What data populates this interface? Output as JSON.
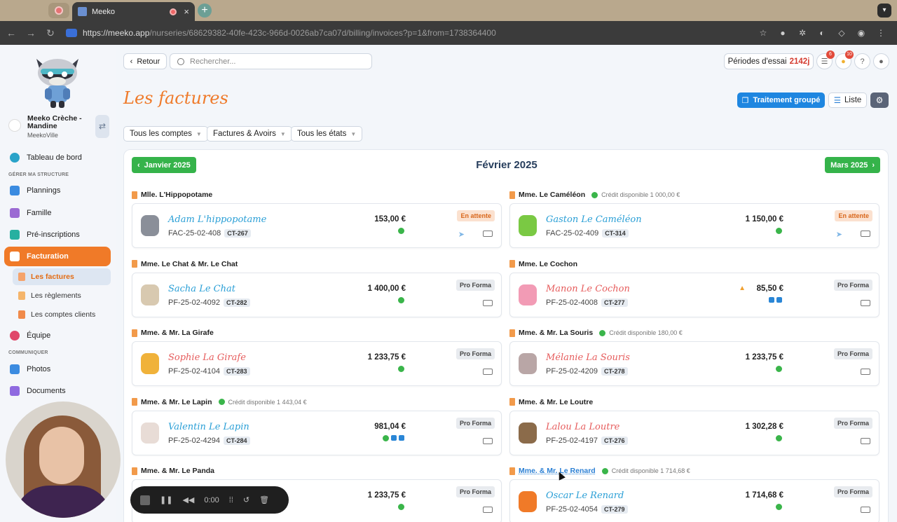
{
  "browser": {
    "tab_title": "Meeko",
    "url_host": "https://meeko.app",
    "url_path": "/nurseries/68629382-40fe-423c-966d-0026ab7ca07d/billing/invoices?p=1&from=1738364400"
  },
  "sidebar": {
    "org_name": "Meeko Crèche - Mandine",
    "org_city": "MeekoVille",
    "dashboard": "Tableau de bord",
    "section_manage": "GÉRER MA STRUCTURE",
    "plannings": "Plannings",
    "famille": "Famille",
    "preinscriptions": "Pré-inscriptions",
    "facturation": "Facturation",
    "sub_factures": "Les factures",
    "sub_reglements": "Les règlements",
    "sub_comptes": "Les comptes clients",
    "equipe": "Équipe",
    "section_comm": "COMMUNIQUER",
    "photos": "Photos",
    "documents": "Documents"
  },
  "header": {
    "back": "Retour",
    "search_placeholder": "Rechercher...",
    "trial_label": "Périodes d'essai",
    "trial_days": "2142j",
    "badge_list": "6",
    "badge_bell": "10",
    "help": "?"
  },
  "page": {
    "title": "Les factures",
    "btn_group": "Traitement groupé",
    "btn_list": "Liste"
  },
  "filters": {
    "accounts": "Tous les comptes",
    "type": "Factures & Avoirs",
    "states": "Tous les états"
  },
  "month": {
    "prev": "Janvier 2025",
    "current": "Février 2025",
    "next": "Mars 2025"
  },
  "families": [
    {
      "family": "Mlle. L'Hippopotame",
      "credit": "",
      "child": "Adam L'hippopotame",
      "ref": "FAC-25-02-408",
      "ct": "CT-267",
      "amount": "153,00 €",
      "status": "En attente",
      "color": "#2a9fd6"
    },
    {
      "family": "Mme. Le Caméléon",
      "credit": "Crédit disponible 1 000,00 €",
      "child": "Gaston Le Caméléon",
      "ref": "FAC-25-02-409",
      "ct": "CT-314",
      "amount": "1 150,00 €",
      "status": "En attente",
      "color": "#2a9fd6"
    },
    {
      "family": "Mme. Le Chat & Mr. Le Chat",
      "credit": "",
      "child": "Sacha Le Chat",
      "ref": "PF-25-02-4092",
      "ct": "CT-282",
      "amount": "1 400,00 €",
      "status": "Pro Forma",
      "color": "#2a9fd6"
    },
    {
      "family": "Mme. Le Cochon",
      "credit": "",
      "child": "Manon Le Cochon",
      "ref": "PF-25-02-4008",
      "ct": "CT-277",
      "amount": "85,50 €",
      "status": "Pro Forma",
      "color": "#e65c5c"
    },
    {
      "family": "Mme. & Mr. La Girafe",
      "credit": "",
      "child": "Sophie La Girafe",
      "ref": "PF-25-02-4104",
      "ct": "CT-283",
      "amount": "1 233,75 €",
      "status": "Pro Forma",
      "color": "#e65c5c"
    },
    {
      "family": "Mme. & Mr. La Souris",
      "credit": "Crédit disponible 180,00 €",
      "child": "Mélanie La Souris",
      "ref": "PF-25-02-4209",
      "ct": "CT-278",
      "amount": "1 233,75 €",
      "status": "Pro Forma",
      "color": "#e65c5c"
    },
    {
      "family": "Mme. & Mr. Le Lapin",
      "credit": "Crédit disponible 1 443,04 €",
      "child": "Valentin Le Lapin",
      "ref": "PF-25-02-4294",
      "ct": "CT-284",
      "amount": "981,04 €",
      "status": "Pro Forma",
      "color": "#2a9fd6"
    },
    {
      "family": "Mme. & Mr. Le Loutre",
      "credit": "",
      "child": "Lalou La Loutre",
      "ref": "PF-25-02-4197",
      "ct": "CT-276",
      "amount": "1 302,28 €",
      "status": "Pro Forma",
      "color": "#e65c5c"
    },
    {
      "family": "Mme. & Mr. Le Panda",
      "credit": "",
      "child": "",
      "ref": "",
      "ct": "",
      "amount": "1 233,75 €",
      "status": "Pro Forma",
      "color": "#2a9fd6"
    },
    {
      "family": "Mme. & Mr. Le Renard",
      "credit": "Crédit disponible 1 714,68 €",
      "child": "Oscar Le Renard",
      "ref": "PF-25-02-4054",
      "ct": "CT-279",
      "amount": "1 714,68 €",
      "status": "Pro Forma",
      "color": "#2a9fd6"
    }
  ],
  "recorder": {
    "time": "0:00"
  },
  "colors": {
    "accent": "#f07a28",
    "primary": "#1e86e0",
    "success": "#35b34a"
  }
}
